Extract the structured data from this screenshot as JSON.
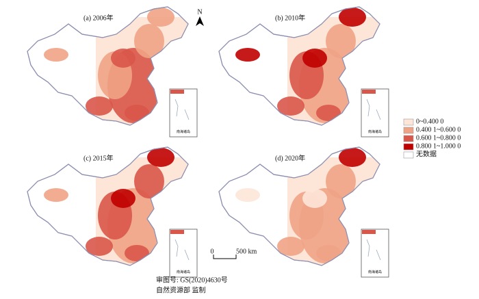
{
  "panels": [
    {
      "label": "(a) 2006年"
    },
    {
      "label": "(b) 2010年"
    },
    {
      "label": "(c) 2015年"
    },
    {
      "label": "(d) 2020年"
    }
  ],
  "north": "N",
  "inset_label": "南海诸岛",
  "legend": {
    "items": [
      {
        "label": "0~0.400 0",
        "color": "#fde6d8"
      },
      {
        "label": "0.400 1~0.600 0",
        "color": "#efa386"
      },
      {
        "label": "0.600 1~0.800 0",
        "color": "#d9574a"
      },
      {
        "label": "0.800 1~1.000 0",
        "color": "#c00000"
      },
      {
        "label": "无数据",
        "color": "#ffffff"
      }
    ]
  },
  "scale_bar": {
    "zero": "0",
    "distance": "500 km"
  },
  "footer": [
    "审图号: GS(2020)4630号",
    "自然资源部 监制"
  ]
}
